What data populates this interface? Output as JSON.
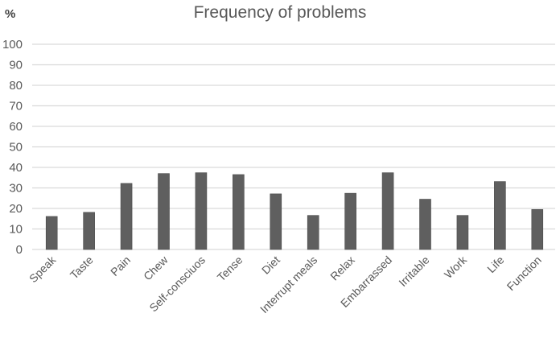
{
  "chart_data": {
    "type": "bar",
    "title": "Frequency of problems",
    "ylabel": "%",
    "xlabel": "",
    "ylim": [
      0,
      100
    ],
    "yticks": [
      0,
      10,
      20,
      30,
      40,
      50,
      60,
      70,
      80,
      90,
      100
    ],
    "grid": true,
    "legend": "none",
    "bar_color": "#5f5f5f",
    "categories": [
      "Speak",
      "Taste",
      "Pain",
      "Chew",
      "Self-consciuos",
      "Tense",
      "Diet",
      "Interrupt meals",
      "Relax",
      "Embarrassed",
      "Irritable",
      "Work",
      "Life",
      "Function"
    ],
    "values": [
      16.1,
      18.1,
      32.2,
      37.0,
      37.4,
      36.5,
      27.1,
      16.6,
      27.4,
      37.4,
      24.5,
      16.6,
      33.1,
      19.5
    ]
  }
}
